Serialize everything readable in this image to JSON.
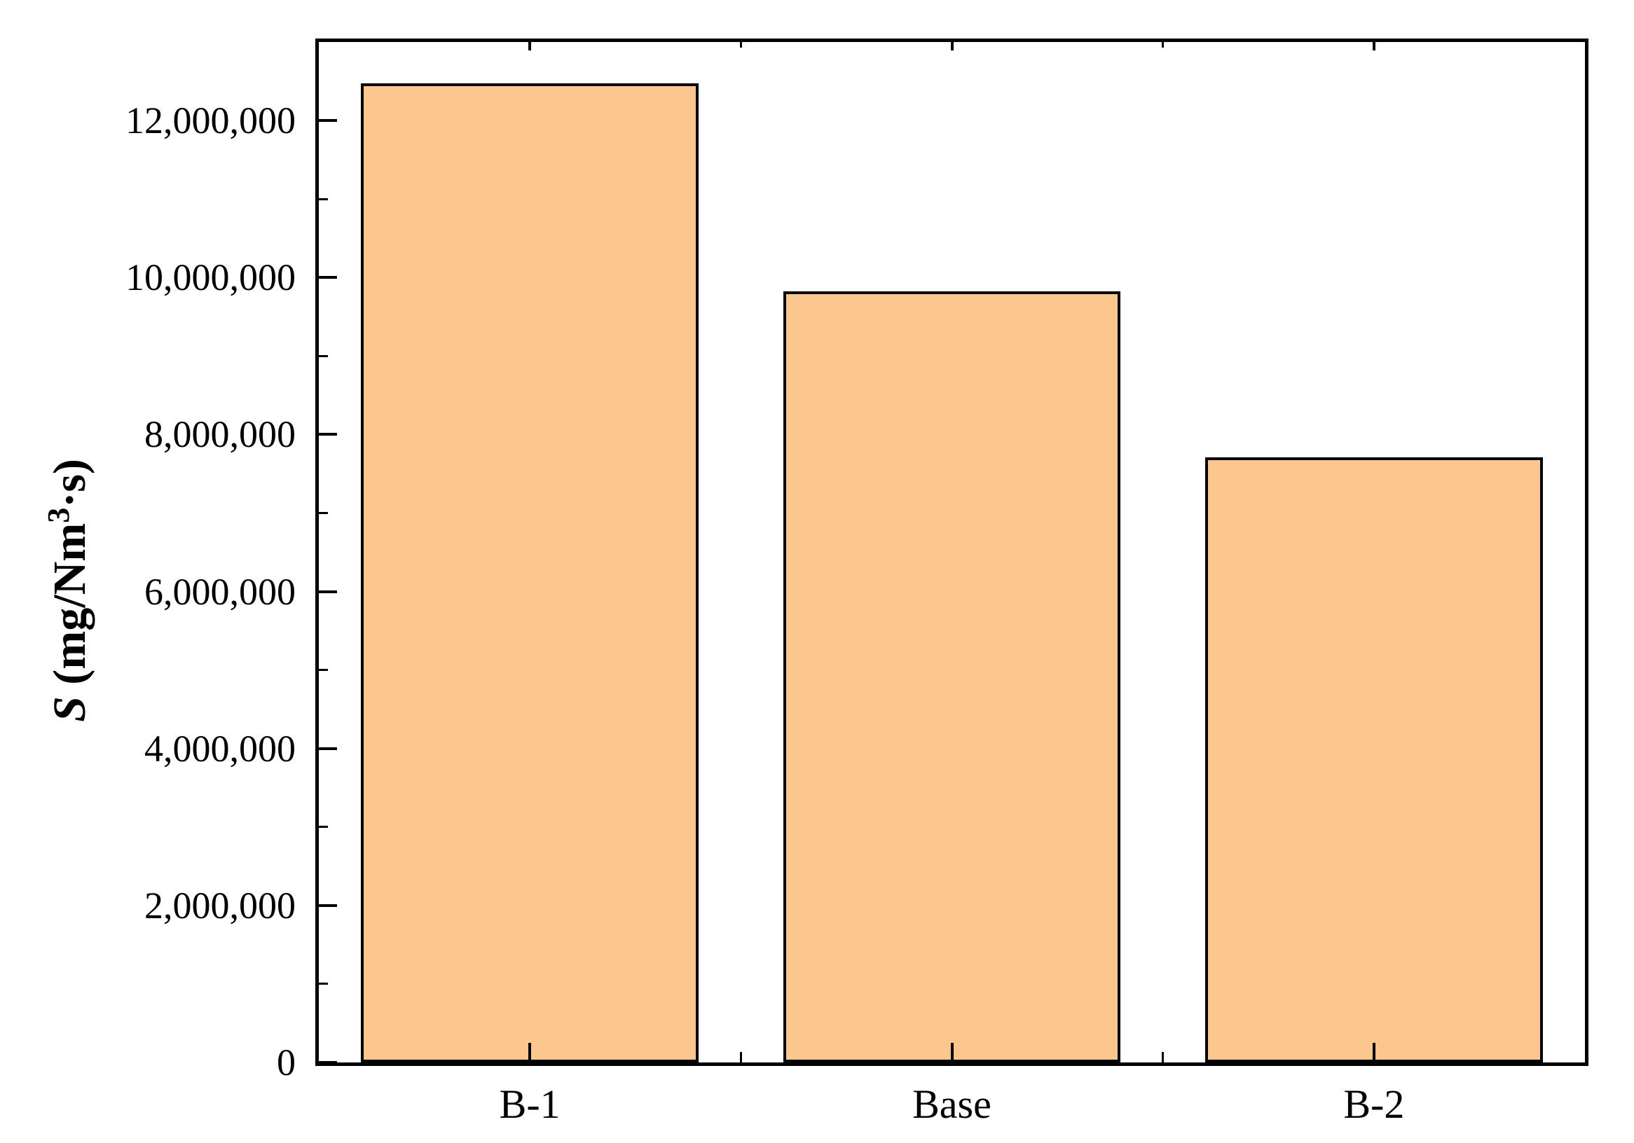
{
  "chart_data": {
    "type": "bar",
    "title": "",
    "categories": [
      "B-1",
      "Base",
      "B-2"
    ],
    "values": [
      12470000,
      9820000,
      7710000
    ],
    "xlabel": "",
    "ylabel": "S (mg/Nm3·s)",
    "ylabel_parts": {
      "symbol": "S",
      "unit_open": " (mg/Nm",
      "sup": "3",
      "unit_close": "·s)"
    },
    "ylim": [
      0,
      13000000
    ],
    "y_major_ticks": [
      0,
      2000000,
      4000000,
      6000000,
      8000000,
      10000000,
      12000000
    ],
    "y_tick_labels": [
      "0",
      "2,000,000",
      "4,000,000",
      "6,000,000",
      "8,000,000",
      "10,000,000",
      "12,000,000"
    ],
    "y_minor_ticks": [
      1000000,
      3000000,
      5000000,
      7000000,
      9000000,
      11000000
    ],
    "grid": "off",
    "legend": "none",
    "tick_direction": "in",
    "bar_fill_color": "#FBC78E",
    "bar_border_color": "#000000",
    "axis_color": "#000000",
    "background_color": "#FFFFFF"
  }
}
